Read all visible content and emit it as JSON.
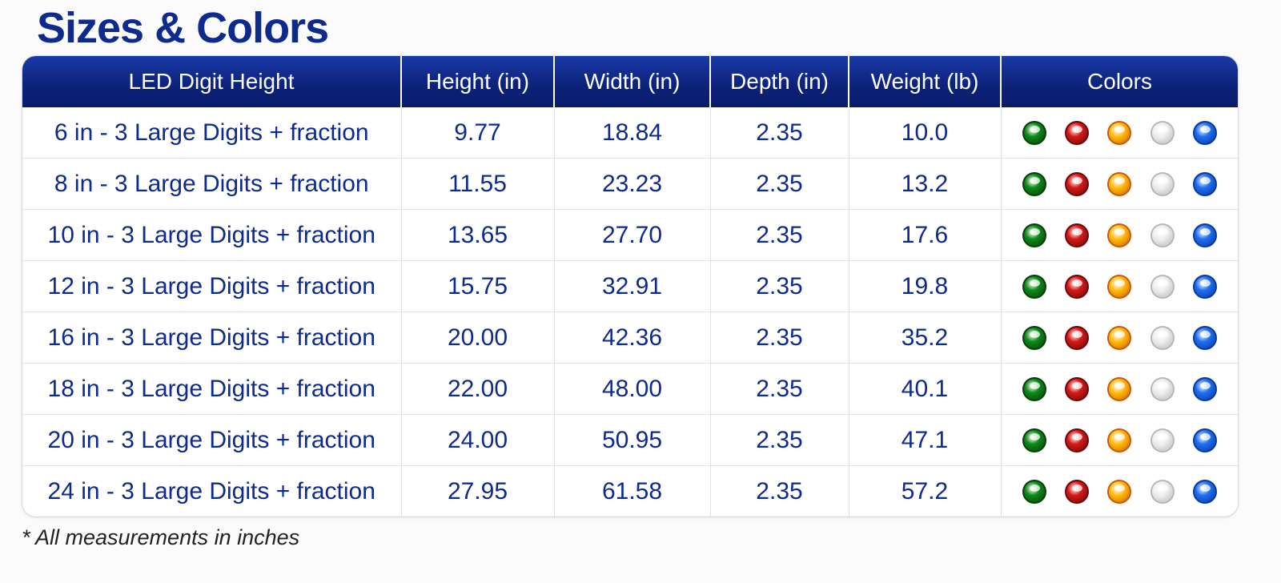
{
  "title": "Sizes & Colors",
  "footnote": "* All measurements in inches",
  "table": {
    "headers": [
      "LED Digit Height",
      "Height (in)",
      "Width (in)",
      "Depth (in)",
      "Weight (lb)",
      "Colors"
    ],
    "rows": [
      {
        "model": "6 in - 3 Large Digits + fraction",
        "height": "9.77",
        "width": "18.84",
        "depth": "2.35",
        "weight": "10.0"
      },
      {
        "model": "8 in - 3 Large Digits + fraction",
        "height": "11.55",
        "width": "23.23",
        "depth": "2.35",
        "weight": "13.2"
      },
      {
        "model": "10 in - 3 Large Digits + fraction",
        "height": "13.65",
        "width": "27.70",
        "depth": "2.35",
        "weight": "17.6"
      },
      {
        "model": "12 in - 3 Large Digits + fraction",
        "height": "15.75",
        "width": "32.91",
        "depth": "2.35",
        "weight": "19.8"
      },
      {
        "model": "16 in - 3 Large Digits + fraction",
        "height": "20.00",
        "width": "42.36",
        "depth": "2.35",
        "weight": "35.2"
      },
      {
        "model": "18 in - 3 Large Digits + fraction",
        "height": "22.00",
        "width": "48.00",
        "depth": "2.35",
        "weight": "40.1"
      },
      {
        "model": "20 in - 3 Large Digits + fraction",
        "height": "24.00",
        "width": "50.95",
        "depth": "2.35",
        "weight": "47.1"
      },
      {
        "model": "24 in - 3 Large Digits + fraction",
        "height": "27.95",
        "width": "61.58",
        "depth": "2.35",
        "weight": "57.2"
      }
    ],
    "color_options": [
      {
        "name": "green",
        "hex": "#0a8a16",
        "border": "#0a3d0e"
      },
      {
        "name": "red",
        "hex": "#d81818",
        "border": "#6a0808"
      },
      {
        "name": "yellow",
        "hex": "#ffbf10",
        "border": "#d05a00"
      },
      {
        "name": "white",
        "hex": "#efefef",
        "border": "#b8b8b8"
      },
      {
        "name": "blue",
        "hex": "#1f6df2",
        "border": "#0b3a9e"
      }
    ]
  },
  "theme": {
    "header_blue": "#0c2178",
    "text_blue": "#0d2a8c"
  }
}
